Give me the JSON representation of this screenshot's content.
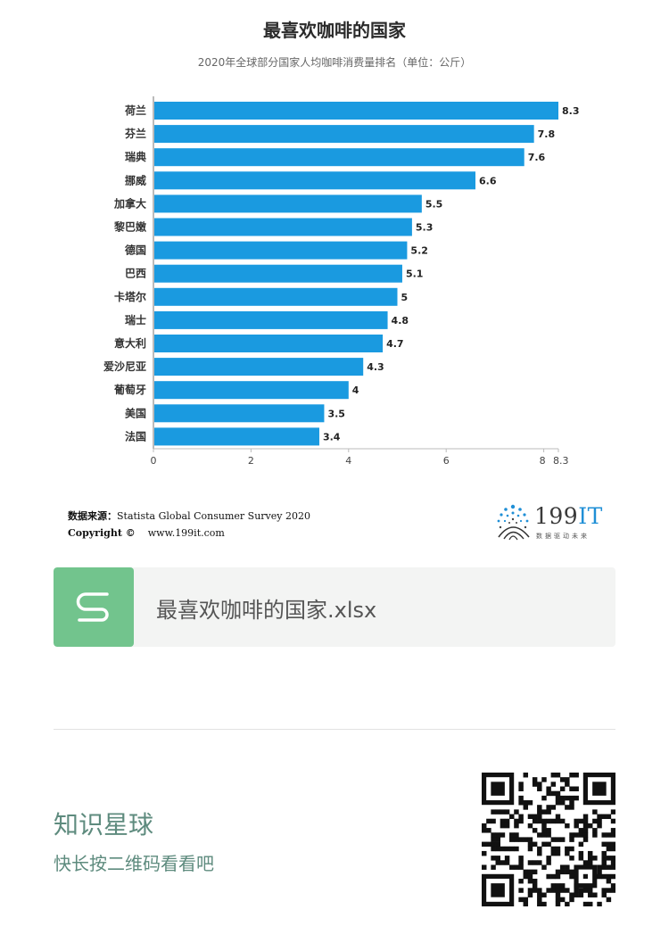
{
  "header": {
    "title": "最喜欢咖啡的国家",
    "subtitle": "2020年全球部分国家人均咖啡消费量排名（单位：公斤）"
  },
  "chart_data": {
    "type": "bar",
    "orientation": "horizontal",
    "title": "最喜欢咖啡的国家",
    "subtitle": "2020年全球部分国家人均咖啡消费量排名（单位：公斤）",
    "categories": [
      "荷兰",
      "芬兰",
      "瑞典",
      "挪威",
      "加拿大",
      "黎巴嫩",
      "德国",
      "巴西",
      "卡塔尔",
      "瑞士",
      "意大利",
      "爱沙尼亚",
      "葡萄牙",
      "美国",
      "法国"
    ],
    "values": [
      8.3,
      7.8,
      7.6,
      6.6,
      5.5,
      5.3,
      5.2,
      5.1,
      5,
      4.8,
      4.7,
      4.3,
      4,
      3.5,
      3.4
    ],
    "value_labels": [
      "8.3",
      "7.8",
      "7.6",
      "6.6",
      "5.5",
      "5.3",
      "5.2",
      "5.1",
      "5",
      "4.8",
      "4.7",
      "4.3",
      "4",
      "3.5",
      "3.4"
    ],
    "x_ticks": [
      "0",
      "2",
      "4",
      "6",
      "8",
      "8.3"
    ],
    "xlim": [
      0,
      8.3
    ],
    "bar_color": "#1a9ae0",
    "grid": false,
    "legend": "none"
  },
  "footer": {
    "source_label": "数据来源：",
    "source_text": "Statista Global Consumer Survey 2020",
    "copyright_label": "Copyright ©",
    "copyright_url": "www.199it.com",
    "logo_text_num": "199",
    "logo_text_it": "IT",
    "logo_tagline": "数据驱动未来"
  },
  "file_card": {
    "icon": "spreadsheet-s-icon",
    "name": "最喜欢咖啡的国家.xlsx",
    "accent": "#72c48d"
  },
  "promo": {
    "title": "知识星球",
    "subtitle": "快长按二维码看看吧",
    "qr_icon": "qr-code-icon"
  }
}
